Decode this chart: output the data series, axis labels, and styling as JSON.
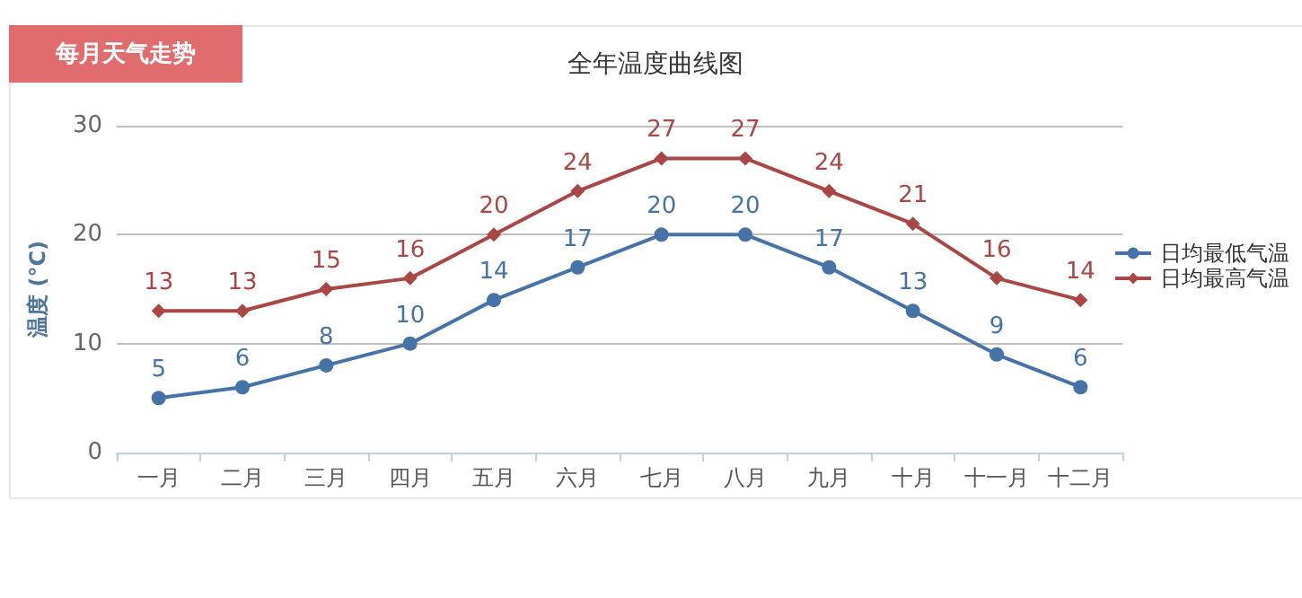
{
  "chart_data": {
    "type": "line",
    "title": "全年温度曲线图",
    "annotations": [
      "每月天气走势"
    ],
    "ylabel": "温度 (°C)",
    "categories": [
      "一月",
      "二月",
      "三月",
      "四月",
      "五月",
      "六月",
      "七月",
      "八月",
      "九月",
      "十月",
      "十一月",
      "十二月"
    ],
    "series": [
      {
        "name": "日均最低气温",
        "color": "#4572a7",
        "marker": "circle",
        "values": [
          5,
          6,
          8,
          10,
          14,
          17,
          20,
          20,
          17,
          13,
          9,
          6
        ]
      },
      {
        "name": "日均最高气温",
        "color": "#aa4643",
        "marker": "diamond",
        "values": [
          13,
          13,
          15,
          16,
          20,
          24,
          27,
          27,
          24,
          21,
          16,
          14
        ]
      }
    ],
    "ylim": [
      0,
      30
    ],
    "yticks": [
      0,
      10,
      20,
      30
    ],
    "grid": "y",
    "legend": "right",
    "data_labels": true
  }
}
